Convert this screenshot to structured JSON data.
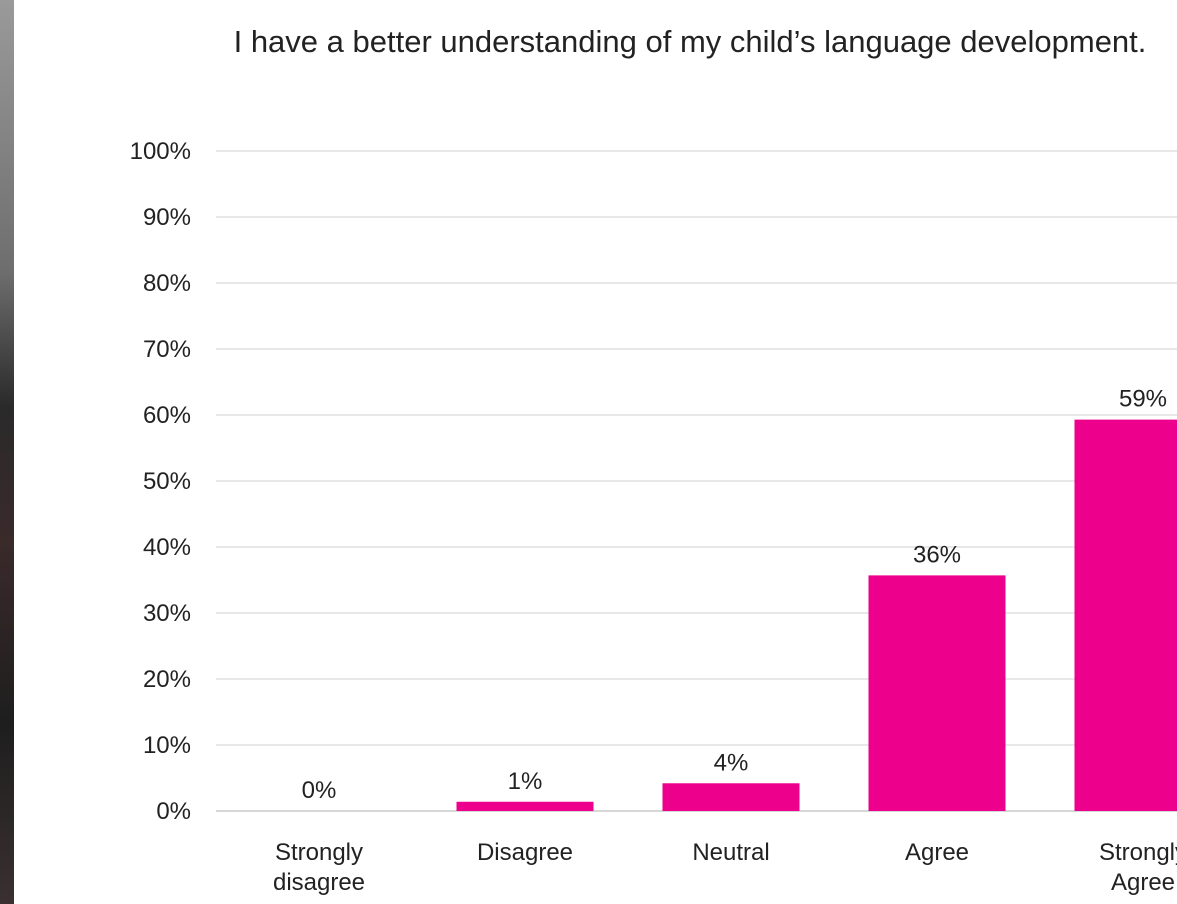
{
  "chart_data": {
    "type": "bar",
    "title": "I have a better understanding of my child’s language development.",
    "categories": [
      [
        "Strongly",
        "disagree"
      ],
      [
        "Disagree"
      ],
      [
        "Neutral"
      ],
      [
        "Agree"
      ],
      [
        "Strongly",
        "Agree"
      ]
    ],
    "values": [
      0,
      1.4,
      4.2,
      35.7,
      59.3
    ],
    "data_labels": [
      "0%",
      "1%",
      "4%",
      "36%",
      "59%"
    ],
    "ylim": [
      0,
      100
    ],
    "yticks": [
      "0%",
      "10%",
      "20%",
      "30%",
      "40%",
      "50%",
      "60%",
      "70%",
      "80%",
      "90%",
      "100%"
    ],
    "grid": true,
    "bar_color": "#EC008C"
  }
}
